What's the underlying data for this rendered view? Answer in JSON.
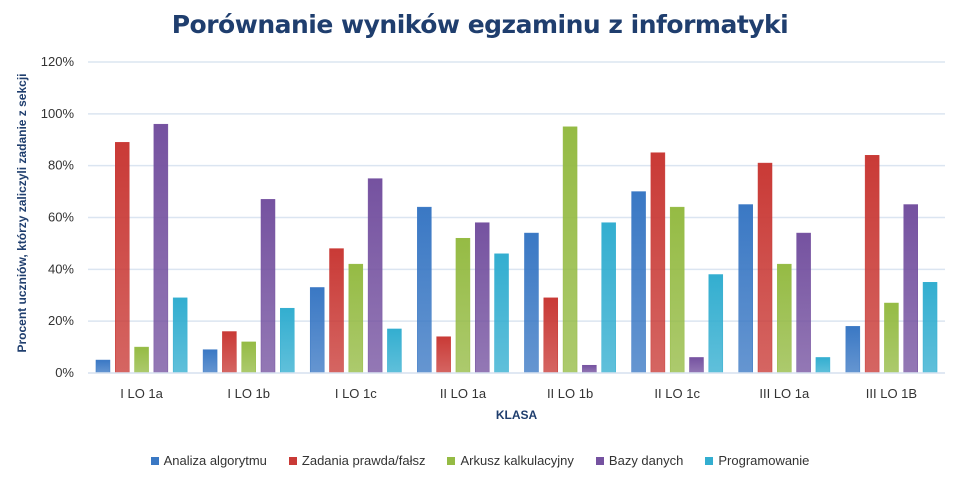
{
  "chart_data": {
    "type": "bar",
    "title": "Porównanie wyników egzaminu z informatyki",
    "xlabel": "KLASA",
    "ylabel": "Procent uczniów, którzy zaliczyli zadanie z sekcji",
    "ylim": [
      0,
      120
    ],
    "yticks": [
      "0%",
      "20%",
      "40%",
      "60%",
      "80%",
      "100%",
      "120%"
    ],
    "grid": true,
    "legend_position": "bottom",
    "categories": [
      "I LO 1a",
      "I LO 1b",
      "I LO 1c",
      "II LO 1a",
      "II LO 1b",
      "II LO 1c",
      "III LO 1a",
      "III LO 1B"
    ],
    "series": [
      {
        "name": "Analiza algorytmu",
        "color": "#3a78c4",
        "values": [
          5,
          9,
          33,
          64,
          54,
          70,
          65,
          18
        ]
      },
      {
        "name": "Zadania prawda/fałsz",
        "color": "#c93a36",
        "values": [
          89,
          16,
          48,
          14,
          29,
          85,
          81,
          84
        ]
      },
      {
        "name": "Arkusz kalkulacyjny",
        "color": "#95bb44",
        "values": [
          10,
          12,
          42,
          52,
          95,
          64,
          42,
          27
        ]
      },
      {
        "name": "Bazy danych",
        "color": "#7552a0",
        "values": [
          96,
          67,
          75,
          58,
          3,
          6,
          54,
          65
        ]
      },
      {
        "name": "Programowanie",
        "color": "#33aed0",
        "values": [
          29,
          25,
          17,
          46,
          58,
          38,
          6,
          35
        ]
      }
    ]
  }
}
